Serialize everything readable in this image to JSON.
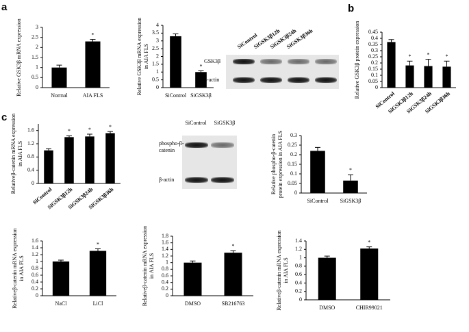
{
  "panels": [
    "a",
    "b",
    "c"
  ],
  "blots": [
    {
      "lanes": [
        "SiControl",
        "SiGSK3β12h",
        "SiGSK3β24h",
        "SiGSK3β36h"
      ],
      "rows": [
        [
          "GSK3β"
        ],
        [
          "β-actin"
        ]
      ]
    },
    {
      "lanes": [
        "SiControl",
        "SiGSK3β"
      ],
      "rows": [
        [
          "phospho-β-",
          "catenin"
        ],
        [
          "β-actin"
        ]
      ]
    }
  ],
  "chart_data": [
    {
      "type": "bar",
      "ylabel": [
        "Relative GSK3β mRNA expression"
      ],
      "categories": [
        "Normal",
        "AIA FLS"
      ],
      "values": [
        1.0,
        2.3
      ],
      "errors": [
        0.12,
        0.1
      ],
      "significance": [
        null,
        "*"
      ],
      "color": "#000000",
      "ylim": [
        0,
        3
      ],
      "yticks": [
        0,
        0.5,
        1,
        1.5,
        2,
        2.5,
        3
      ]
    },
    {
      "type": "bar",
      "ylabel": [
        "Relative GSK3β mRNA expression",
        "in AIA FLS"
      ],
      "categories": [
        "SiControl",
        "SiGSK3β"
      ],
      "values": [
        3.3,
        1.0
      ],
      "errors": [
        0.15,
        0.08
      ],
      "significance": [
        null,
        "*"
      ],
      "color": "#000000",
      "ylim": [
        0,
        4
      ],
      "yticks": [
        0,
        0.5,
        1,
        1.5,
        2,
        2.5,
        3,
        3.5,
        4
      ]
    },
    {
      "type": "bar",
      "ylabel": [
        "Relative GSK3β protein expression"
      ],
      "categories": [
        "SiControl",
        "SiGSK3β12h",
        "SiGSK3β24h",
        "SiGSK3β36h"
      ],
      "values": [
        0.37,
        0.18,
        0.175,
        0.17
      ],
      "errors": [
        0.02,
        0.035,
        0.055,
        0.045
      ],
      "significance": [
        null,
        "*",
        "*",
        "*"
      ],
      "color": "#000000",
      "ylim": [
        0,
        0.45
      ],
      "yticks": [
        0,
        0.05,
        0.1,
        0.15,
        0.2,
        0.25,
        0.3,
        0.35,
        0.4,
        0.45
      ]
    },
    {
      "type": "bar",
      "ylabel": [
        "Relativeβ-catenin mRNA expression",
        "in AIA FLS"
      ],
      "categories": [
        "SiControl",
        "SiGSK3β12h",
        "SiGSK3β24h",
        "SiGSK3β36h"
      ],
      "values": [
        1.0,
        1.4,
        1.42,
        1.52
      ],
      "errors": [
        0.05,
        0.04,
        0.07,
        0.05
      ],
      "significance": [
        null,
        "*",
        "*",
        "*"
      ],
      "color": "#000000",
      "ylim": [
        0,
        1.8
      ],
      "yticks": [
        0,
        0.4,
        0.8,
        1.2,
        1.6
      ]
    },
    {
      "type": "bar",
      "ylabel": [
        "Relative phospho-β-catenin",
        "protein expression in AIA FLS"
      ],
      "categories": [
        "SiControl",
        "SiGSK3β"
      ],
      "values": [
        0.22,
        0.065
      ],
      "errors": [
        0.018,
        0.03
      ],
      "significance": [
        null,
        "*"
      ],
      "color": "#000000",
      "ylim": [
        0,
        0.3
      ],
      "yticks": [
        0,
        0.05,
        0.1,
        0.15,
        0.2,
        0.25,
        0.3
      ]
    },
    {
      "type": "bar",
      "ylabel": [
        "Relativeβ-catenin mRNA expression",
        "in AIA FLS"
      ],
      "categories": [
        "NaCl",
        "LiCl"
      ],
      "values": [
        1.0,
        1.31
      ],
      "errors": [
        0.04,
        0.06
      ],
      "significance": [
        null,
        "*"
      ],
      "color": "#000000",
      "ylim": [
        0,
        1.6
      ],
      "yticks": [
        0,
        0.2,
        0.4,
        0.6,
        0.8,
        1,
        1.2,
        1.4,
        1.6
      ]
    },
    {
      "type": "bar",
      "ylabel": [
        "Relativeβ-catenin mRNA expression",
        "in AIA FLS"
      ],
      "categories": [
        "DMSO",
        "SB216763"
      ],
      "values": [
        1.0,
        1.3
      ],
      "errors": [
        0.05,
        0.06
      ],
      "significance": [
        null,
        "*"
      ],
      "color": "#000000",
      "ylim": [
        0,
        1.8
      ],
      "yticks": [
        0,
        0.2,
        0.4,
        0.6,
        0.8,
        1,
        1.2,
        1.4,
        1.6,
        1.8
      ]
    },
    {
      "type": "bar",
      "ylabel": [
        "Relativeβ-catenin mRNA expression",
        "in AIA FLS"
      ],
      "categories": [
        "DMSO",
        "CHIR99021"
      ],
      "values": [
        1.0,
        1.22
      ],
      "errors": [
        0.04,
        0.04
      ],
      "significance": [
        null,
        "*"
      ],
      "color": "#000000",
      "ylim": [
        0,
        1.4
      ],
      "yticks": [
        0,
        0.2,
        0.4,
        0.6,
        0.8,
        1,
        1.2,
        1.4
      ]
    }
  ]
}
